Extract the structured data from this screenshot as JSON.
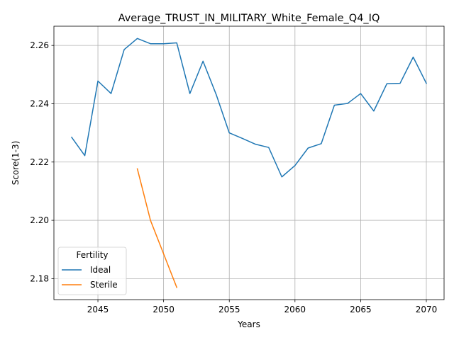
{
  "chart_data": {
    "type": "line",
    "title": "Average_TRUST_IN_MILITARY_White_Female_Q4_IQ",
    "xlabel": "Years",
    "ylabel": "Score(1-3)",
    "xlim": [
      2041.65,
      2071.35
    ],
    "ylim": [
      2.1728,
      2.2666
    ],
    "xticks": [
      2045,
      2050,
      2055,
      2060,
      2065,
      2070
    ],
    "yticks": [
      2.18,
      2.2,
      2.22,
      2.24,
      2.26
    ],
    "grid": true,
    "legend": {
      "title": "Fertility",
      "position": "lower-left"
    },
    "series": [
      {
        "name": "Ideal",
        "color": "#1f77b4",
        "x": [
          2043,
          2044,
          2045,
          2046,
          2047,
          2048,
          2049,
          2050,
          2051,
          2052,
          2053,
          2054,
          2055,
          2056,
          2057,
          2058,
          2059,
          2060,
          2061,
          2062,
          2063,
          2064,
          2065,
          2066,
          2067,
          2068,
          2069,
          2070
        ],
        "y": [
          2.2285,
          2.2222,
          2.2478,
          2.2435,
          2.2586,
          2.2624,
          2.2606,
          2.2606,
          2.2609,
          2.2435,
          2.2546,
          2.2432,
          2.23,
          2.2281,
          2.2261,
          2.225,
          2.2149,
          2.2188,
          2.2248,
          2.2263,
          2.2395,
          2.2401,
          2.2435,
          2.2375,
          2.2469,
          2.247,
          2.256,
          2.247
        ]
      },
      {
        "name": "Sterile",
        "color": "#ff7f0e",
        "x": [
          2048,
          2049,
          2050,
          2051
        ],
        "y": [
          2.2177,
          2.2,
          2.1885,
          2.177
        ]
      }
    ]
  }
}
